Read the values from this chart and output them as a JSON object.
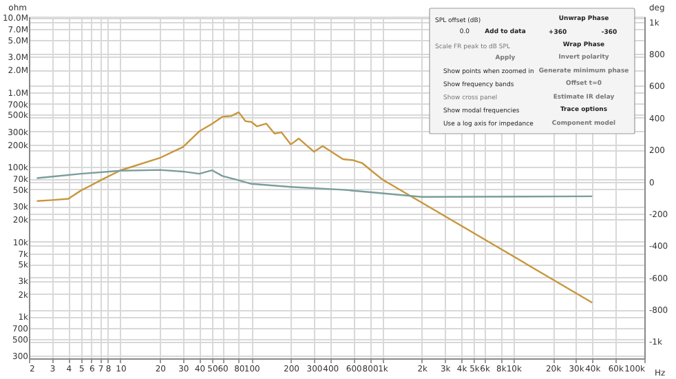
{
  "chart_data": {
    "type": "line",
    "xlabel": "Hz",
    "ylabel": "ohm",
    "y2label": "deg",
    "xlim": [
      2,
      100000
    ],
    "ylim": [
      275,
      10300000
    ],
    "y2lim": [
      -1106,
      1033
    ],
    "xticks": [
      2,
      3,
      4,
      5,
      6,
      7,
      8,
      10,
      20,
      30,
      40,
      50,
      60,
      80,
      100,
      200,
      300,
      400,
      600,
      800,
      {
        "value": 1000,
        "label": "1k"
      },
      {
        "value": 2000,
        "label": "2k"
      },
      {
        "value": 3000,
        "label": "3k"
      },
      {
        "value": 4000,
        "label": "4k"
      },
      {
        "value": 5000,
        "label": "5k"
      },
      {
        "value": 6000,
        "label": "6k"
      },
      {
        "value": 8000,
        "label": "8k"
      },
      {
        "value": 10000,
        "label": "10k"
      },
      {
        "value": 20000,
        "label": "20k"
      },
      {
        "value": 30000,
        "label": "30k"
      },
      {
        "value": 40000,
        "label": "40k"
      },
      {
        "value": 60000,
        "label": "60k"
      },
      {
        "value": 100000,
        "label": "100k"
      }
    ],
    "yticks": [
      300,
      500,
      700,
      {
        "value": 1000,
        "label": "1k"
      },
      {
        "value": 2000,
        "label": "2k"
      },
      {
        "value": 3000,
        "label": "3k"
      },
      {
        "value": 5000,
        "label": "5k"
      },
      {
        "value": 7000,
        "label": "7k"
      },
      {
        "value": 10000,
        "label": "10k"
      },
      {
        "value": 20000,
        "label": "20k"
      },
      {
        "value": 30000,
        "label": "30k"
      },
      {
        "value": 50000,
        "label": "50k"
      },
      {
        "value": 70000,
        "label": "70k"
      },
      {
        "value": 100000,
        "label": "100k"
      },
      {
        "value": 200000,
        "label": "200k"
      },
      {
        "value": 300000,
        "label": "300k"
      },
      {
        "value": 500000,
        "label": "500k"
      },
      {
        "value": 700000,
        "label": "700k"
      },
      {
        "value": 1000000,
        "label": "1.0M"
      },
      {
        "value": 2000000,
        "label": "2.0M"
      },
      {
        "value": 3000000,
        "label": "3.0M"
      },
      {
        "value": 5000000,
        "label": "5.0M"
      },
      {
        "value": 7000000,
        "label": "7.0M"
      },
      {
        "value": 10000000,
        "label": "10.0M"
      }
    ],
    "y2ticks": [
      {
        "value": -1000,
        "label": "-1k"
      },
      -800,
      -600,
      -400,
      -200,
      0,
      200,
      400,
      600,
      800,
      {
        "value": 1000,
        "label": "1k"
      }
    ],
    "log": "xy",
    "grid": true,
    "series": [
      {
        "color": "#c8963c",
        "x": [
          2.3,
          3,
          4,
          5,
          6,
          7,
          10,
          20,
          30,
          40,
          50,
          60,
          70,
          80,
          90,
          100,
          110,
          130,
          150,
          170,
          200,
          230,
          300,
          350,
          500,
          600,
          700,
          800,
          1000,
          40000
        ],
        "values": [
          35000,
          36000,
          37500,
          48500,
          57000,
          66000,
          90000,
          132000,
          185000,
          300000,
          377000,
          470000,
          480000,
          540000,
          410000,
          400000,
          350000,
          380000,
          280000,
          290000,
          200000,
          240000,
          160000,
          190000,
          127000,
          123000,
          113000,
          93000,
          68000,
          1530
        ]
      },
      {
        "color": "#7a9e9a",
        "axis": "y2",
        "x": [
          2.3,
          5,
          10,
          20,
          30,
          40,
          50,
          60,
          80,
          100,
          200,
          500,
          1000,
          2000,
          40000
        ],
        "values": [
          22,
          49,
          68,
          73,
          63,
          49,
          71,
          35,
          8,
          -14,
          -33,
          -51,
          -73,
          -96,
          -92
        ]
      }
    ],
    "annotations": [
      "SPL offset (dB)",
      "0.0",
      "Add to data",
      "Unwrap Phase",
      "+360",
      "-360",
      "Wrap Phase",
      "Scale FR peak to dB SPL",
      "Apply",
      "Invert polarity",
      "Show points when zoomed in",
      "Generate minimum phase",
      "Show frequency bands",
      "Offset t=0",
      "Show cross panel",
      "Estimate IR delay",
      "Show modal frequencies",
      "Trace options",
      "Use a log axis for impedance",
      "Component model"
    ]
  }
}
